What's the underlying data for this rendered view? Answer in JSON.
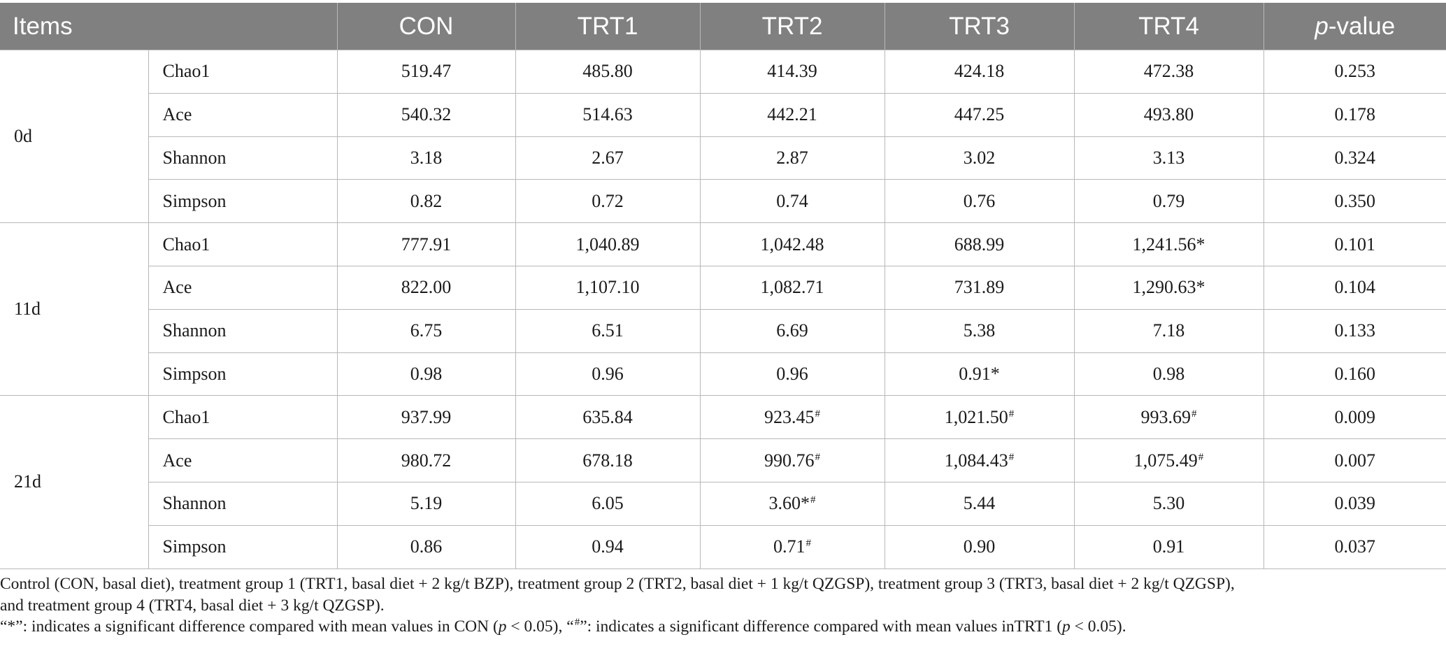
{
  "table": {
    "headers": {
      "items": "Items",
      "groups": [
        "CON",
        "TRT1",
        "TRT2",
        "TRT3",
        "TRT4"
      ],
      "pvalue_prefix": "p",
      "pvalue_suffix": "-value"
    },
    "time_groups": [
      {
        "label": "0d",
        "rows": [
          {
            "metric": "Chao1",
            "cells": [
              {
                "v": "519.47",
                "m": ""
              },
              {
                "v": "485.80",
                "m": ""
              },
              {
                "v": "414.39",
                "m": ""
              },
              {
                "v": "424.18",
                "m": ""
              },
              {
                "v": "472.38",
                "m": ""
              }
            ],
            "p": "0.253"
          },
          {
            "metric": "Ace",
            "cells": [
              {
                "v": "540.32",
                "m": ""
              },
              {
                "v": "514.63",
                "m": ""
              },
              {
                "v": "442.21",
                "m": ""
              },
              {
                "v": "447.25",
                "m": ""
              },
              {
                "v": "493.80",
                "m": ""
              }
            ],
            "p": "0.178"
          },
          {
            "metric": "Shannon",
            "cells": [
              {
                "v": "3.18",
                "m": ""
              },
              {
                "v": "2.67",
                "m": ""
              },
              {
                "v": "2.87",
                "m": ""
              },
              {
                "v": "3.02",
                "m": ""
              },
              {
                "v": "3.13",
                "m": ""
              }
            ],
            "p": "0.324"
          },
          {
            "metric": "Simpson",
            "cells": [
              {
                "v": "0.82",
                "m": ""
              },
              {
                "v": "0.72",
                "m": ""
              },
              {
                "v": "0.74",
                "m": ""
              },
              {
                "v": "0.76",
                "m": ""
              },
              {
                "v": "0.79",
                "m": ""
              }
            ],
            "p": "0.350"
          }
        ]
      },
      {
        "label": "11d",
        "rows": [
          {
            "metric": "Chao1",
            "cells": [
              {
                "v": "777.91",
                "m": ""
              },
              {
                "v": "1,040.89",
                "m": ""
              },
              {
                "v": "1,042.48",
                "m": ""
              },
              {
                "v": "688.99",
                "m": ""
              },
              {
                "v": "1,241.56*",
                "m": ""
              }
            ],
            "p": "0.101"
          },
          {
            "metric": "Ace",
            "cells": [
              {
                "v": "822.00",
                "m": ""
              },
              {
                "v": "1,107.10",
                "m": ""
              },
              {
                "v": "1,082.71",
                "m": ""
              },
              {
                "v": "731.89",
                "m": ""
              },
              {
                "v": "1,290.63*",
                "m": ""
              }
            ],
            "p": "0.104"
          },
          {
            "metric": "Shannon",
            "cells": [
              {
                "v": "6.75",
                "m": ""
              },
              {
                "v": "6.51",
                "m": ""
              },
              {
                "v": "6.69",
                "m": ""
              },
              {
                "v": "5.38",
                "m": ""
              },
              {
                "v": "7.18",
                "m": ""
              }
            ],
            "p": "0.133"
          },
          {
            "metric": "Simpson",
            "cells": [
              {
                "v": "0.98",
                "m": ""
              },
              {
                "v": "0.96",
                "m": ""
              },
              {
                "v": "0.96",
                "m": ""
              },
              {
                "v": "0.91*",
                "m": ""
              },
              {
                "v": "0.98",
                "m": ""
              }
            ],
            "p": "0.160"
          }
        ]
      },
      {
        "label": "21d",
        "rows": [
          {
            "metric": "Chao1",
            "cells": [
              {
                "v": "937.99",
                "m": ""
              },
              {
                "v": "635.84",
                "m": ""
              },
              {
                "v": "923.45",
                "m": "#"
              },
              {
                "v": "1,021.50",
                "m": "#"
              },
              {
                "v": "993.69",
                "m": "#"
              }
            ],
            "p": "0.009"
          },
          {
            "metric": "Ace",
            "cells": [
              {
                "v": "980.72",
                "m": ""
              },
              {
                "v": "678.18",
                "m": ""
              },
              {
                "v": "990.76",
                "m": "#"
              },
              {
                "v": "1,084.43",
                "m": "#"
              },
              {
                "v": "1,075.49",
                "m": "#"
              }
            ],
            "p": "0.007"
          },
          {
            "metric": "Shannon",
            "cells": [
              {
                "v": "5.19",
                "m": ""
              },
              {
                "v": "6.05",
                "m": ""
              },
              {
                "v": "3.60*",
                "m": "#"
              },
              {
                "v": "5.44",
                "m": ""
              },
              {
                "v": "5.30",
                "m": ""
              }
            ],
            "p": "0.039"
          },
          {
            "metric": "Simpson",
            "cells": [
              {
                "v": "0.86",
                "m": ""
              },
              {
                "v": "0.94",
                "m": ""
              },
              {
                "v": "0.71",
                "m": "#"
              },
              {
                "v": "0.90",
                "m": ""
              },
              {
                "v": "0.91",
                "m": ""
              }
            ],
            "p": "0.037"
          }
        ]
      }
    ]
  },
  "footnotes": {
    "line1": "Control (CON, basal diet), treatment group 1 (TRT1, basal diet + 2 kg/t BZP), treatment group 2 (TRT2, basal diet + 1 kg/t QZGSP), treatment group 3 (TRT3, basal diet + 2 kg/t QZGSP),",
    "line2": "and treatment group 4 (TRT4, basal diet + 3 kg/t QZGSP).",
    "line3_a": "“*”: indicates a significant difference compared with mean values in CON (",
    "line3_p1": "p",
    "line3_b": " < 0.05), “",
    "line3_mark": "#",
    "line3_c": "”: indicates a significant difference compared with mean values inTRT1 (",
    "line3_p2": "p",
    "line3_d": " < 0.05)."
  }
}
